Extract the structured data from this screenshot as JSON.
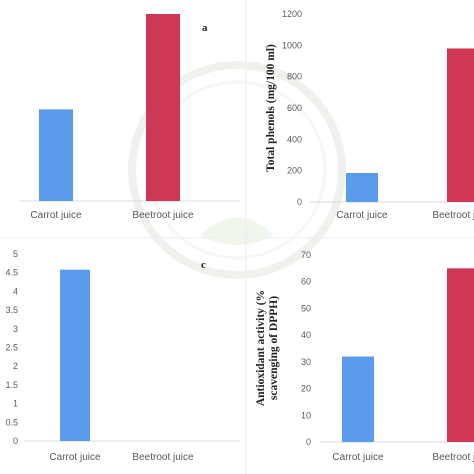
{
  "colors": {
    "carrot": "#5a9bec",
    "beetroot": "#cf3854",
    "axis": "#d9d9d9",
    "watermark": "#e8eee4"
  },
  "chart_data": [
    {
      "type": "bar",
      "panel_label": "a",
      "categories": [
        "Carrot juice",
        "Beetroot juice"
      ],
      "values": [
        490,
        1000
      ],
      "ylabel": "",
      "ylim": [
        0,
        1000
      ],
      "show_ticks": false,
      "grid": false
    },
    {
      "type": "bar",
      "panel_label": "",
      "categories": [
        "Carrot juice",
        "Beetroot juice"
      ],
      "values": [
        185,
        980
      ],
      "ylabel": "Total phenols (mg/100 ml)",
      "ylim": [
        0,
        1200
      ],
      "yticks": [
        "0",
        "200",
        "400",
        "600",
        "800",
        "1000",
        "1200"
      ],
      "grid": false
    },
    {
      "type": "bar",
      "panel_label": "c",
      "categories": [
        "Carrot juice",
        "Beetroot juice"
      ],
      "values": [
        4.58,
        0
      ],
      "ylabel": "",
      "ylim": [
        0,
        5
      ],
      "yticks": [
        "0",
        "0.5",
        "1",
        "1.5",
        "2",
        "2.5",
        "3",
        "3.5",
        "4",
        "4.5",
        "5"
      ],
      "grid": false
    },
    {
      "type": "bar",
      "panel_label": "",
      "categories": [
        "Carrot juice",
        "Beetroot juice"
      ],
      "values": [
        32,
        65
      ],
      "ylabel": "Antioxidant activity (% scavenging of DPPH)",
      "ylabel_lines": [
        "Antioxidant activity (%",
        "scavenging of DPPH)"
      ],
      "ylim": [
        0,
        70
      ],
      "yticks": [
        "0",
        "10",
        "20",
        "30",
        "40",
        "50",
        "60",
        "70"
      ],
      "grid": false
    }
  ]
}
